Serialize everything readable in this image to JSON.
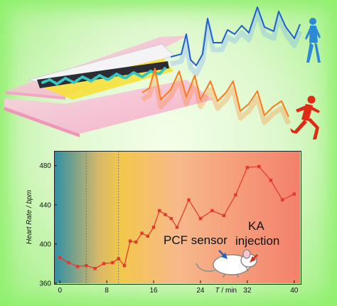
{
  "colors": {
    "frame_green": "#8ff06c",
    "blue_trace": "#1f5fd6",
    "blue_glow": "#6aa0ff",
    "orange_trace": "#ff7a1a",
    "runner_red": "#e02a14",
    "walker_blue": "#2a8ad8",
    "film_pink": "#f6bcd2",
    "data_red": "#e23b2e",
    "gradient_stops": [
      "#2e8fa6",
      "#d6b86a",
      "#f3c84a",
      "#f7b98b",
      "#f4806a"
    ]
  },
  "icons": {
    "walker": "walking-person-icon",
    "runner": "running-person-icon",
    "mouse": "mouse-icon"
  },
  "annotations": {
    "sensor": "PCF sensor",
    "ka_line1": "KA",
    "ka_line2": "injection"
  },
  "chart_data": {
    "type": "line",
    "xlabel_var": "T",
    "xlabel_unit": " / min",
    "ylabel": "Heart Rate / bpm",
    "xlim": [
      -1,
      41
    ],
    "ylim": [
      360,
      495
    ],
    "xticks": [
      0,
      8,
      16,
      24,
      32,
      40
    ],
    "yticks": [
      360,
      400,
      440,
      480
    ],
    "phase_dividers": [
      4.5,
      10
    ],
    "series": [
      {
        "x": [
          0,
          1.5,
          3,
          4.5,
          6,
          7.5,
          9,
          10,
          11,
          12,
          13,
          14,
          15,
          16,
          17,
          18,
          19,
          20,
          22,
          24,
          26,
          28,
          30,
          32,
          34,
          36,
          38,
          40
        ],
        "y": [
          386,
          381,
          377,
          378,
          375,
          380,
          381,
          385,
          378,
          403,
          402,
          411,
          408,
          417,
          434,
          430,
          426,
          417,
          445,
          426,
          434,
          429,
          450,
          478,
          479,
          465,
          445,
          451
        ]
      }
    ]
  }
}
